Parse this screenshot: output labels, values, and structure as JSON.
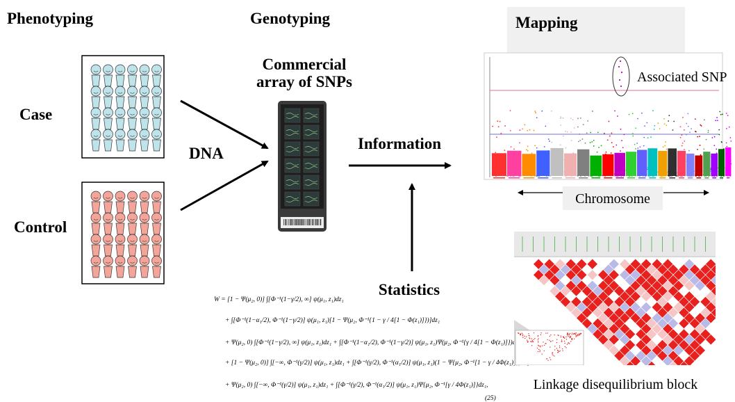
{
  "headers": {
    "phenotyping": "Phenotyping",
    "genotyping": "Genotyping",
    "mapping": "Mapping"
  },
  "groups": {
    "case": "Case",
    "control": "Control"
  },
  "array_label": [
    "Commercial",
    "array of SNPs"
  ],
  "flow": {
    "dna": "DNA",
    "information": "Information",
    "statistics": "Statistics"
  },
  "mapping": {
    "associated": "Associated SNP",
    "chromosome": "Chromosome",
    "ld": "Linkage disequilibrium block"
  },
  "equation": {
    "lines": [
      "W  =  [1 − Ψ(μ₂, 0)] ∫[Φ⁻¹(1−γ/2), ∞] ψ(μ₁, z₁)dz₁",
      "+  ∫[Φ⁻¹(1−α₁/2), Φ⁻¹(1−γ/2)] ψ(μ₁, z₁)[1 − Ψ(μ₂, Φ⁻¹{1 − γ / 4[1 − Φ(z₁)]})]dz₁",
      "+  Ψ(μ₂, 0) ∫[Φ⁻¹(1−γ/2), ∞] ψ(μ₁, z₁)dz₁ + ∫[Φ⁻¹(1−α₁/2), Φ⁻¹(1−γ/2)] ψ(μ₁, z₁)Ψ(μ₂, Φ⁻¹{γ / 4[1 − Φ(z₁)]})dz₁",
      "+  [1 − Ψ(μ₂, 0)] ∫[−∞, Φ⁻¹(γ/2)] ψ(μ₁, z₁)dz₁ + ∫[Φ⁻¹(γ/2), Φ⁻¹(α₁/2)] ψ(μ₁, z₁)(1 − Ψ{μ₂, Φ⁻¹[1 − γ / 4Φ(z₁)]})dz₁",
      "+  Ψ(μ₂, 0) ∫[−∞, Φ⁻¹(γ/2)] ψ(μ₁, z₁)dz₁ + ∫[Φ⁻¹(γ/2), Φ⁻¹(α₁/2)] ψ(μ₁, z₁)Ψ{μ₂, Φ⁻¹[γ / 4Φ(z₁)]}dz₁,"
    ],
    "number": "(25)"
  }
}
